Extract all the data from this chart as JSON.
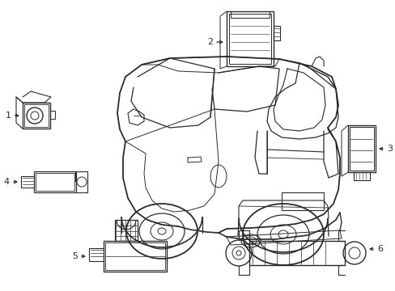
{
  "bg_color": "#ffffff",
  "line_color": "#2a2a2a",
  "fig_width": 4.89,
  "fig_height": 3.6,
  "dpi": 100
}
